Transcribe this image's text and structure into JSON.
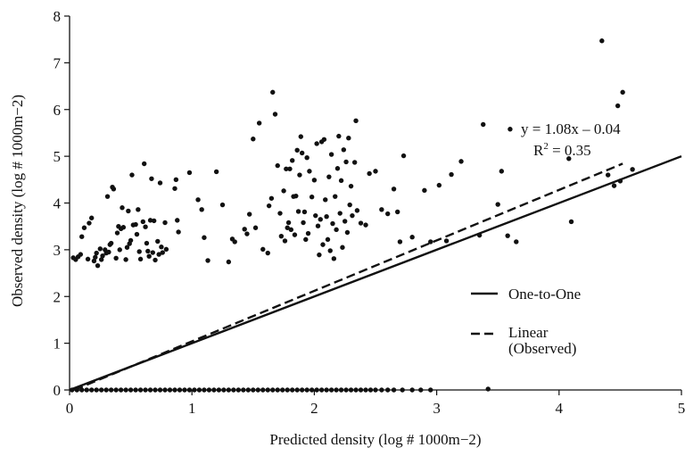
{
  "chart_data": {
    "type": "scatter",
    "xlabel": "Predicted density (log # 1000m−2)",
    "ylabel": "Observed density (log # 1000m−2)",
    "xlim": [
      0,
      5
    ],
    "ylim": [
      0,
      8
    ],
    "x_ticks": [
      "0",
      "1",
      "2",
      "3",
      "4",
      "5"
    ],
    "y_ticks": [
      "0",
      "1",
      "2",
      "3",
      "4",
      "5",
      "6",
      "7",
      "8"
    ],
    "grid": false,
    "annotation": {
      "equation": "y = 1.08x – 0.04",
      "r2_label": "R",
      "r2_sup": "2",
      "r2_value": " = 0.35"
    },
    "legend": {
      "position": "lower-right",
      "entries": [
        {
          "label": "One-to-One",
          "style": "solid"
        },
        {
          "label": "Linear",
          "label2": "(Observed)",
          "style": "dashed"
        }
      ]
    },
    "lines": [
      {
        "name": "One-to-One",
        "style": "solid",
        "points": [
          [
            0,
            0
          ],
          [
            5,
            5
          ]
        ]
      },
      {
        "name": "Linear (Observed)",
        "style": "dashed",
        "slope": 1.08,
        "intercept": -0.04,
        "x_range": [
          0.04,
          4.52
        ]
      }
    ],
    "points": [
      [
        0.03,
        2.83
      ],
      [
        0.05,
        2.79
      ],
      [
        0.07,
        2.85
      ],
      [
        0.09,
        2.9
      ],
      [
        0.1,
        3.28
      ],
      [
        0.12,
        3.47
      ],
      [
        0.15,
        2.8
      ],
      [
        0.16,
        3.57
      ],
      [
        0.18,
        3.68
      ],
      [
        0.2,
        2.76
      ],
      [
        0.21,
        2.84
      ],
      [
        0.22,
        2.93
      ],
      [
        0.23,
        2.66
      ],
      [
        0.25,
        3.02
      ],
      [
        0.26,
        2.79
      ],
      [
        0.27,
        2.87
      ],
      [
        0.29,
        3.0
      ],
      [
        0.3,
        2.93
      ],
      [
        0.31,
        4.14
      ],
      [
        0.32,
        2.95
      ],
      [
        0.33,
        3.11
      ],
      [
        0.34,
        3.14
      ],
      [
        0.35,
        4.34
      ],
      [
        0.36,
        4.3
      ],
      [
        0.38,
        2.82
      ],
      [
        0.39,
        3.36
      ],
      [
        0.4,
        3.5
      ],
      [
        0.41,
        3.0
      ],
      [
        0.42,
        3.45
      ],
      [
        0.43,
        3.9
      ],
      [
        0.44,
        3.48
      ],
      [
        0.46,
        2.79
      ],
      [
        0.47,
        3.05
      ],
      [
        0.48,
        3.83
      ],
      [
        0.49,
        3.13
      ],
      [
        0.5,
        3.2
      ],
      [
        0.51,
        4.6
      ],
      [
        0.52,
        3.53
      ],
      [
        0.54,
        3.54
      ],
      [
        0.55,
        3.33
      ],
      [
        0.56,
        3.86
      ],
      [
        0.57,
        2.96
      ],
      [
        0.58,
        2.8
      ],
      [
        0.6,
        3.6
      ],
      [
        0.61,
        4.84
      ],
      [
        0.62,
        3.49
      ],
      [
        0.63,
        3.14
      ],
      [
        0.64,
        2.97
      ],
      [
        0.65,
        2.86
      ],
      [
        0.66,
        3.63
      ],
      [
        0.67,
        4.52
      ],
      [
        0.68,
        2.94
      ],
      [
        0.69,
        3.62
      ],
      [
        0.7,
        2.78
      ],
      [
        0.72,
        3.18
      ],
      [
        0.73,
        2.9
      ],
      [
        0.74,
        4.43
      ],
      [
        0.75,
        3.06
      ],
      [
        0.76,
        2.94
      ],
      [
        0.78,
        3.58
      ],
      [
        0.79,
        3.01
      ],
      [
        0.86,
        4.31
      ],
      [
        0.87,
        4.5
      ],
      [
        0.88,
        3.63
      ],
      [
        0.89,
        3.38
      ],
      [
        0.98,
        4.65
      ],
      [
        1.05,
        4.07
      ],
      [
        1.08,
        3.86
      ],
      [
        1.1,
        3.26
      ],
      [
        1.13,
        2.77
      ],
      [
        1.2,
        4.67
      ],
      [
        1.25,
        3.96
      ],
      [
        1.3,
        2.74
      ],
      [
        1.33,
        3.23
      ],
      [
        1.35,
        3.17
      ],
      [
        1.43,
        3.44
      ],
      [
        1.45,
        3.34
      ],
      [
        1.47,
        3.76
      ],
      [
        1.5,
        5.37
      ],
      [
        1.52,
        3.47
      ],
      [
        1.55,
        5.71
      ],
      [
        1.58,
        3.01
      ],
      [
        1.62,
        2.93
      ],
      [
        1.63,
        3.94
      ],
      [
        1.65,
        4.1
      ],
      [
        1.66,
        6.37
      ],
      [
        1.68,
        5.9
      ],
      [
        1.7,
        4.8
      ],
      [
        1.72,
        3.78
      ],
      [
        1.73,
        3.29
      ],
      [
        1.75,
        4.26
      ],
      [
        1.76,
        3.19
      ],
      [
        1.77,
        4.73
      ],
      [
        1.78,
        3.47
      ],
      [
        1.79,
        3.58
      ],
      [
        1.8,
        4.73
      ],
      [
        1.81,
        3.43
      ],
      [
        1.82,
        4.91
      ],
      [
        1.83,
        4.14
      ],
      [
        1.84,
        3.32
      ],
      [
        1.85,
        4.15
      ],
      [
        1.86,
        5.13
      ],
      [
        1.87,
        3.82
      ],
      [
        1.88,
        4.6
      ],
      [
        1.89,
        5.42
      ],
      [
        1.9,
        5.07
      ],
      [
        1.91,
        3.58
      ],
      [
        1.92,
        3.81
      ],
      [
        1.93,
        3.22
      ],
      [
        1.94,
        4.97
      ],
      [
        1.95,
        3.35
      ],
      [
        1.96,
        4.68
      ],
      [
        1.98,
        4.13
      ],
      [
        2.0,
        4.49
      ],
      [
        2.01,
        3.73
      ],
      [
        2.02,
        5.27
      ],
      [
        2.03,
        3.51
      ],
      [
        2.04,
        2.89
      ],
      [
        2.05,
        3.65
      ],
      [
        2.06,
        5.31
      ],
      [
        2.07,
        3.11
      ],
      [
        2.08,
        5.36
      ],
      [
        2.09,
        4.07
      ],
      [
        2.1,
        3.71
      ],
      [
        2.11,
        3.22
      ],
      [
        2.12,
        4.56
      ],
      [
        2.13,
        2.98
      ],
      [
        2.14,
        5.04
      ],
      [
        2.15,
        3.56
      ],
      [
        2.16,
        2.81
      ],
      [
        2.17,
        4.14
      ],
      [
        2.18,
        3.43
      ],
      [
        2.19,
        4.74
      ],
      [
        2.2,
        5.43
      ],
      [
        2.21,
        3.78
      ],
      [
        2.22,
        4.48
      ],
      [
        2.23,
        3.05
      ],
      [
        2.24,
        5.14
      ],
      [
        2.25,
        3.61
      ],
      [
        2.26,
        4.88
      ],
      [
        2.27,
        3.37
      ],
      [
        2.28,
        5.39
      ],
      [
        2.29,
        3.96
      ],
      [
        2.3,
        4.36
      ],
      [
        2.31,
        3.73
      ],
      [
        2.33,
        4.87
      ],
      [
        2.34,
        5.76
      ],
      [
        2.35,
        3.84
      ],
      [
        2.38,
        3.57
      ],
      [
        2.42,
        3.53
      ],
      [
        2.45,
        4.63
      ],
      [
        2.5,
        4.68
      ],
      [
        2.55,
        3.86
      ],
      [
        2.6,
        3.77
      ],
      [
        2.65,
        4.3
      ],
      [
        2.68,
        3.81
      ],
      [
        2.7,
        3.17
      ],
      [
        2.73,
        5.01
      ],
      [
        2.8,
        3.27
      ],
      [
        2.9,
        4.27
      ],
      [
        2.95,
        3.17
      ],
      [
        3.02,
        4.38
      ],
      [
        3.08,
        3.19
      ],
      [
        3.12,
        4.61
      ],
      [
        3.2,
        4.89
      ],
      [
        3.35,
        3.31
      ],
      [
        3.38,
        5.68
      ],
      [
        3.5,
        3.97
      ],
      [
        3.53,
        4.68
      ],
      [
        3.58,
        3.3
      ],
      [
        3.6,
        5.58
      ],
      [
        3.65,
        3.17
      ],
      [
        4.08,
        4.95
      ],
      [
        4.1,
        3.6
      ],
      [
        4.35,
        7.47
      ],
      [
        4.4,
        4.6
      ],
      [
        4.45,
        4.37
      ],
      [
        4.48,
        6.08
      ],
      [
        4.5,
        4.47
      ],
      [
        4.52,
        6.37
      ],
      [
        4.6,
        4.72
      ],
      [
        3.42,
        0.02
      ]
    ],
    "zero_band_x": [
      0.02,
      0.06,
      0.1,
      0.14,
      0.18,
      0.22,
      0.26,
      0.3,
      0.34,
      0.38,
      0.42,
      0.46,
      0.5,
      0.54,
      0.58,
      0.62,
      0.66,
      0.7,
      0.74,
      0.78,
      0.82,
      0.86,
      0.9,
      0.94,
      0.98,
      1.02,
      1.06,
      1.1,
      1.14,
      1.18,
      1.22,
      1.26,
      1.3,
      1.34,
      1.38,
      1.42,
      1.46,
      1.5,
      1.54,
      1.58,
      1.62,
      1.66,
      1.7,
      1.74,
      1.78,
      1.82,
      1.86,
      1.9,
      1.94,
      1.98,
      2.02,
      2.06,
      2.1,
      2.14,
      2.18,
      2.22,
      2.26,
      2.3,
      2.34,
      2.38,
      2.42,
      2.46,
      2.5,
      2.55,
      2.6,
      2.65,
      2.72,
      2.8,
      2.87,
      2.95
    ]
  }
}
